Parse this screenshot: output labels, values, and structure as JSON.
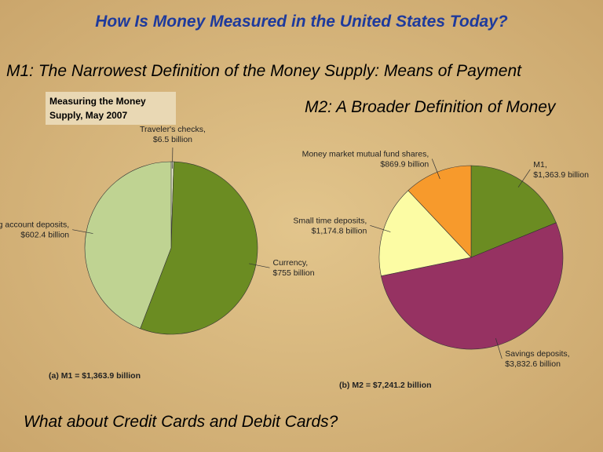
{
  "slide": {
    "title": "How Is Money Measured in the United States Today?",
    "box_label": [
      "Measuring the Money",
      "Supply, May 2007"
    ],
    "question": "What about Credit Cards and Debit Cards?"
  },
  "chart_data": [
    {
      "type": "pie",
      "title": "M1: The Narrowest Definition of the Money Supply: Means of Payment",
      "caption": "(a)  M1 = $1,363.9 billion",
      "categories": [
        "Traveler's checks,",
        "Currency,",
        "Checking account deposits,"
      ],
      "values": [
        6.5,
        755,
        602.4
      ],
      "value_labels": [
        "$6.5 billion",
        "$755 billion",
        "$602.4 billion"
      ],
      "colors": [
        "#eef2d2",
        "#6b8c22",
        "#bfd392"
      ]
    },
    {
      "type": "pie",
      "title": "M2: A Broader Definition of Money",
      "caption": "(b)  M2 = $7,241.2 billion",
      "categories": [
        "M1,",
        "Savings deposits,",
        "Small time deposits,",
        "Money market mutual fund shares,"
      ],
      "values": [
        1363.9,
        3832.6,
        1174.8,
        869.9
      ],
      "value_labels": [
        "$1,363.9 billion",
        "$3,832.6 billion",
        "$1,174.8 billion",
        "$869.9 billion"
      ],
      "colors": [
        "#6b8c22",
        "#963262",
        "#fcfca4",
        "#f79a2c"
      ]
    }
  ]
}
